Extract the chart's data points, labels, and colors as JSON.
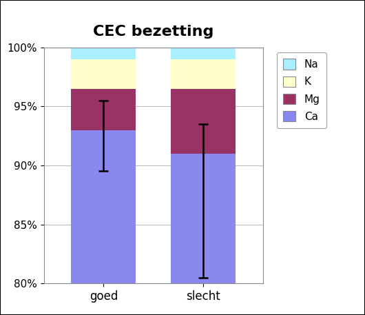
{
  "title": "CEC bezetting",
  "categories": [
    "goed",
    "slecht"
  ],
  "ca_values": [
    93.0,
    91.0
  ],
  "mg_values": [
    3.5,
    5.5
  ],
  "k_values": [
    2.5,
    2.5
  ],
  "na_values": [
    1.0,
    1.0
  ],
  "ca_color": "#8888ee",
  "mg_color": "#993366",
  "k_color": "#ffffcc",
  "na_color": "#aaeeff",
  "error_goed_center": 93.0,
  "error_goed_lower": 3.5,
  "error_goed_upper": 2.5,
  "error_slecht_center": 91.0,
  "error_slecht_lower": 10.5,
  "error_slecht_upper": 2.5,
  "ylim_min": 80,
  "ylim_max": 100,
  "yticks": [
    80,
    85,
    90,
    95,
    100
  ],
  "ytick_labels": [
    "80%",
    "85%",
    "90%",
    "95%",
    "100%"
  ],
  "legend_labels": [
    "Na",
    "K",
    "Mg",
    "Ca"
  ],
  "legend_colors": [
    "#aaeeff",
    "#ffffcc",
    "#993366",
    "#8888ee"
  ],
  "bar_width": 0.65,
  "title_fontsize": 16,
  "background_color": "#ffffff",
  "outer_border_color": "#000000"
}
